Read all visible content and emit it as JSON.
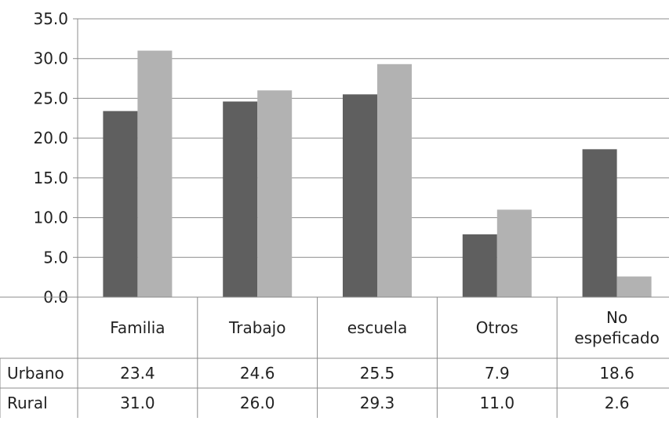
{
  "chart_data": {
    "type": "bar",
    "categories": [
      [
        "Familia"
      ],
      [
        "Trabajo"
      ],
      [
        "escuela"
      ],
      [
        "Otros"
      ],
      [
        "No",
        "espeficado"
      ]
    ],
    "series": [
      {
        "name": "Urbano",
        "values": [
          23.4,
          24.6,
          25.5,
          7.9,
          18.6
        ],
        "color": "#5f5f5f",
        "labels": [
          "23.4",
          "24.6",
          "25.5",
          "7.9",
          "18.6"
        ]
      },
      {
        "name": "Rural",
        "values": [
          31.0,
          26.0,
          29.3,
          11.0,
          2.6
        ],
        "color": "#b2b2b2",
        "labels": [
          "31.0",
          "26.0",
          "29.3",
          "11.0",
          "2.6"
        ]
      }
    ],
    "ylim": [
      0,
      35
    ],
    "yticks": [
      "0.0",
      "5.0",
      "10.0",
      "15.0",
      "20.0",
      "25.0",
      "30.0",
      "35.0"
    ],
    "grid": true,
    "legend": "data-table"
  }
}
